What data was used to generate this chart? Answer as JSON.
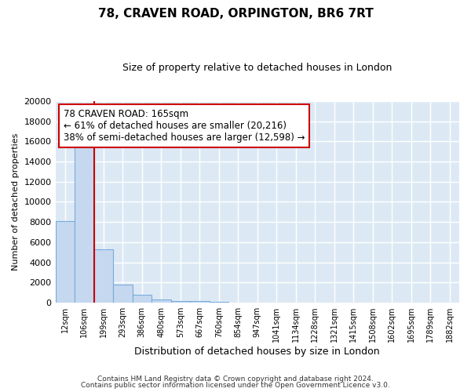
{
  "title1": "78, CRAVEN ROAD, ORPINGTON, BR6 7RT",
  "title2": "Size of property relative to detached houses in London",
  "xlabel": "Distribution of detached houses by size in London",
  "ylabel": "Number of detached properties",
  "categories": [
    "12sqm",
    "106sqm",
    "199sqm",
    "293sqm",
    "386sqm",
    "480sqm",
    "573sqm",
    "667sqm",
    "760sqm",
    "854sqm",
    "947sqm",
    "1041sqm",
    "1134sqm",
    "1228sqm",
    "1321sqm",
    "1415sqm",
    "1508sqm",
    "1602sqm",
    "1695sqm",
    "1789sqm",
    "1882sqm"
  ],
  "values": [
    8100,
    16500,
    5300,
    1800,
    800,
    350,
    200,
    150,
    100,
    0,
    0,
    0,
    0,
    0,
    0,
    0,
    0,
    0,
    0,
    0,
    0
  ],
  "bar_color": "#c5d8f0",
  "bar_edge_color": "#7aabda",
  "red_line_x": 1.5,
  "annotation_text": "78 CRAVEN ROAD: 165sqm\n← 61% of detached houses are smaller (20,216)\n38% of semi-detached houses are larger (12,598) →",
  "annotation_box_color": "#ffffff",
  "annotation_box_edge_color": "#cc0000",
  "red_line_color": "#cc0000",
  "ylim": [
    0,
    20000
  ],
  "yticks": [
    0,
    2000,
    4000,
    6000,
    8000,
    10000,
    12000,
    14000,
    16000,
    18000,
    20000
  ],
  "footer1": "Contains HM Land Registry data © Crown copyright and database right 2024.",
  "footer2": "Contains public sector information licensed under the Open Government Licence v3.0.",
  "fig_bg_color": "#ffffff",
  "plot_bg_color": "#dce9f5",
  "grid_color": "#ffffff",
  "title1_fontsize": 11,
  "title2_fontsize": 9,
  "ylabel_fontsize": 8,
  "xlabel_fontsize": 9,
  "footer_fontsize": 6.5
}
